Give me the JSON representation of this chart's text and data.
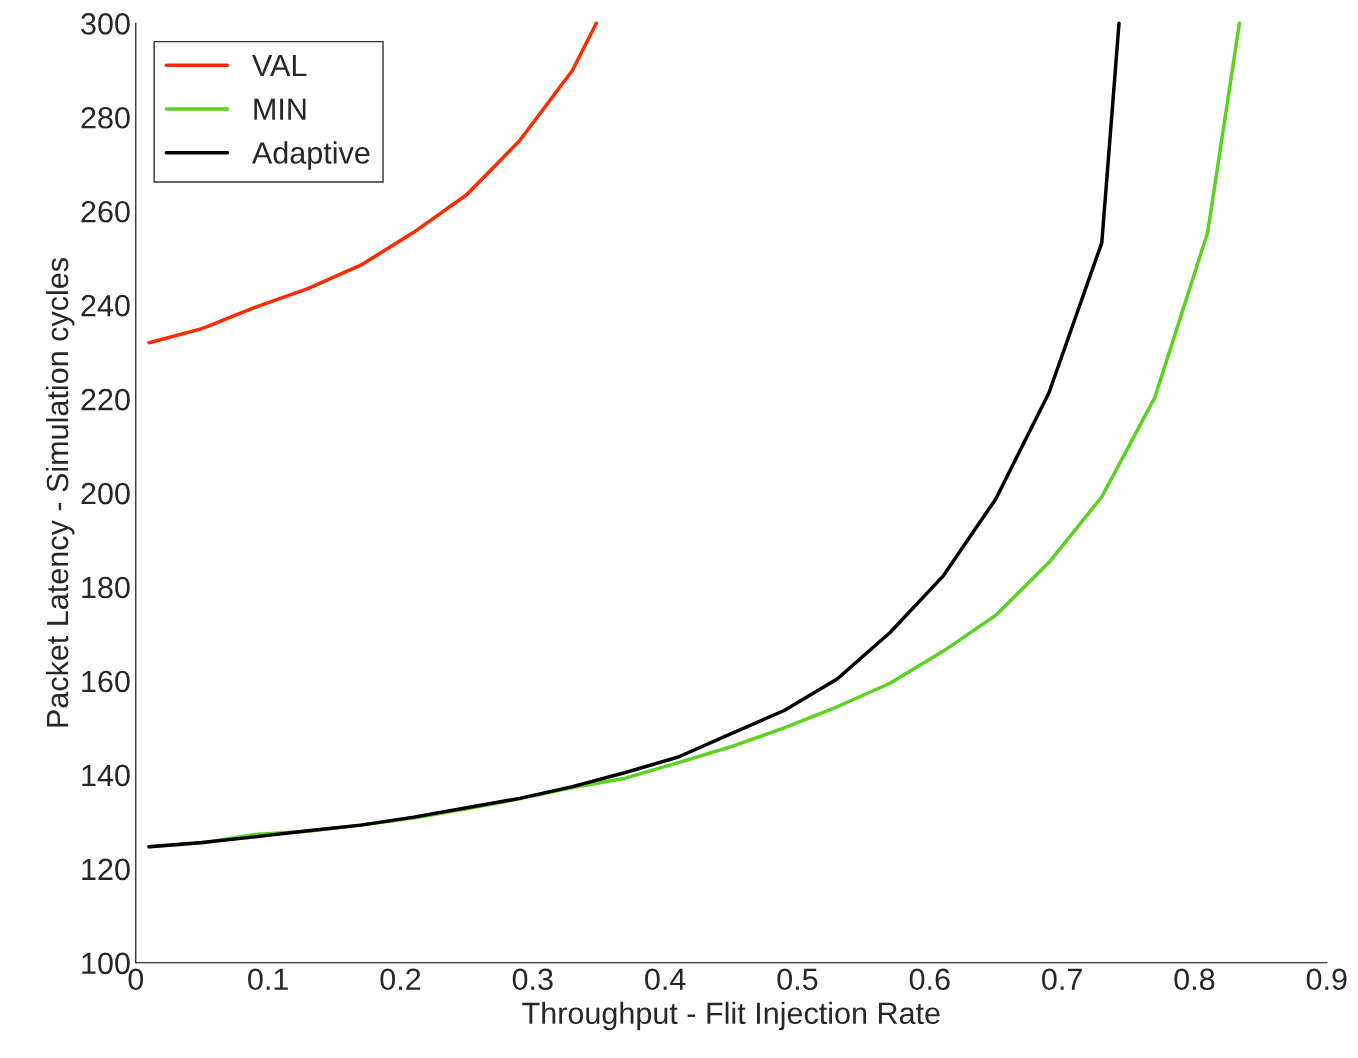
{
  "chart_data": {
    "type": "line",
    "xlabel": "Throughput - Flit Injection Rate",
    "ylabel": "Packet Latency - Simulation cycles",
    "xlim": [
      0,
      0.9
    ],
    "ylim": [
      100,
      300
    ],
    "xticks": [
      0,
      0.1,
      0.2,
      0.3,
      0.4,
      0.5,
      0.6,
      0.7,
      0.8,
      0.9
    ],
    "yticks": [
      100,
      120,
      140,
      160,
      180,
      200,
      220,
      240,
      260,
      280,
      300
    ],
    "grid": false,
    "legend": "top left",
    "marker": "none",
    "line_style": "solid",
    "series": [
      {
        "name": "VAL",
        "color": "#ff2a00",
        "x": [
          0.01,
          0.05,
          0.09,
          0.13,
          0.17,
          0.21,
          0.25,
          0.29,
          0.33,
          0.348
        ],
        "values": [
          232,
          235,
          239.5,
          243.5,
          248.5,
          255.5,
          263.5,
          275,
          290,
          300
        ]
      },
      {
        "name": "MIN",
        "color": "#5ad21e",
        "x": [
          0.01,
          0.05,
          0.09,
          0.13,
          0.17,
          0.21,
          0.25,
          0.29,
          0.33,
          0.37,
          0.41,
          0.45,
          0.49,
          0.53,
          0.57,
          0.61,
          0.65,
          0.69,
          0.73,
          0.77,
          0.81,
          0.834
        ],
        "values": [
          124.7,
          125.5,
          127.3,
          128,
          129.3,
          130.8,
          132.8,
          134.9,
          137.3,
          139.3,
          142.6,
          146,
          150,
          154.5,
          159.5,
          166.3,
          174,
          185.2,
          199.2,
          220.3,
          255.5,
          300
        ]
      },
      {
        "name": "Adaptive",
        "color": "#000000",
        "x": [
          0.01,
          0.05,
          0.09,
          0.13,
          0.17,
          0.21,
          0.25,
          0.29,
          0.33,
          0.37,
          0.41,
          0.45,
          0.49,
          0.53,
          0.57,
          0.61,
          0.65,
          0.69,
          0.73,
          0.743
        ],
        "values": [
          124.7,
          125.6,
          126.8,
          128.1,
          129.3,
          131,
          133,
          135,
          137.5,
          140.5,
          143.8,
          148.8,
          153.7,
          160.4,
          170.3,
          182.3,
          198.8,
          221.3,
          253.3,
          300
        ]
      }
    ]
  }
}
